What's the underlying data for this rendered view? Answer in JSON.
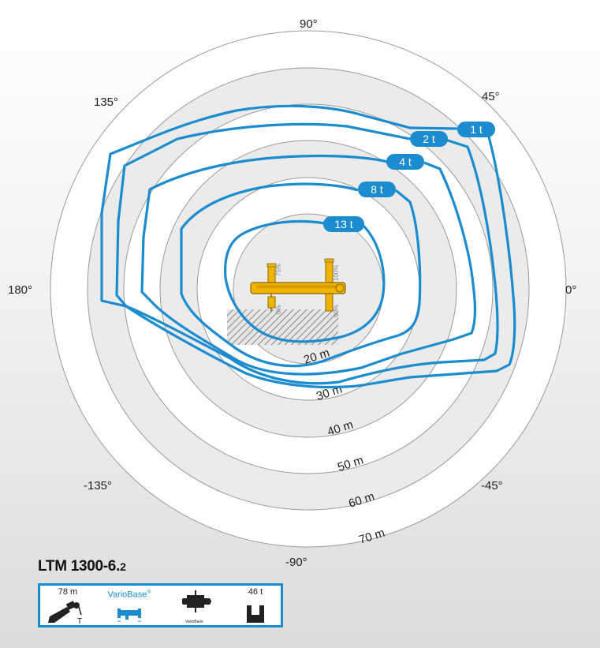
{
  "diagram": {
    "angle_labels": [
      "90°",
      "45°",
      "0°",
      "-45°",
      "-90°",
      "-135°",
      "180°",
      "135°"
    ],
    "radius_labels": [
      "20 m",
      "30 m",
      "40 m",
      "50 m",
      "60 m",
      "70 m"
    ],
    "load_labels": [
      "1 t",
      "2 t",
      "4 t",
      "8 t",
      "13 t"
    ],
    "outrigger_percent": [
      "75%",
      "100%",
      "0%",
      "50%"
    ]
  },
  "colors": {
    "curve": "#1a8ccf",
    "crane": "#f0b400",
    "ring_fill": "#ebebec"
  },
  "model": {
    "name": "LTM 1300-6.",
    "suffix": "2"
  },
  "specs": {
    "boom_length": "78 m",
    "boom_sub": "T",
    "variobase_label": "VarioBase",
    "variobase_mark": "®",
    "crane_icon_label": "VarioBase",
    "counterweight": "46 t"
  }
}
